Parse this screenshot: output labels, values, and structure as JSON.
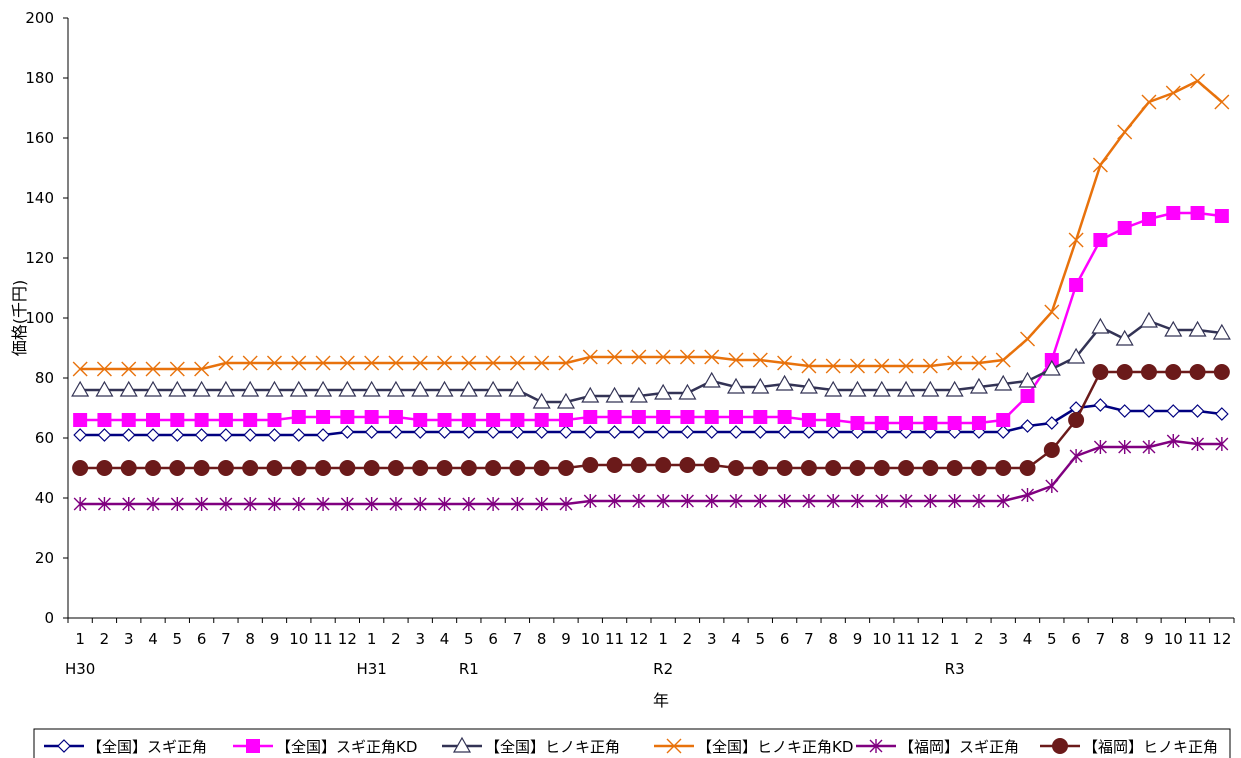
{
  "chart_data": {
    "type": "line",
    "title": "",
    "xlabel": "年",
    "ylabel": "価格(千円)",
    "ylim": [
      0,
      200
    ],
    "yticks": [
      0,
      20,
      40,
      60,
      80,
      100,
      120,
      140,
      160,
      180,
      200
    ],
    "grid": false,
    "legend_position": "bottom",
    "categories": [
      "1",
      "2",
      "3",
      "4",
      "5",
      "6",
      "7",
      "8",
      "9",
      "10",
      "11",
      "12",
      "1",
      "2",
      "3",
      "4",
      "5",
      "6",
      "7",
      "8",
      "9",
      "10",
      "11",
      "12",
      "1",
      "2",
      "3",
      "4",
      "5",
      "6",
      "7",
      "8",
      "9",
      "10",
      "11",
      "12",
      "1",
      "2",
      "3",
      "4",
      "5",
      "6",
      "7",
      "8",
      "9",
      "10",
      "11",
      "12"
    ],
    "year_labels": [
      {
        "index": 0,
        "label": "H30"
      },
      {
        "index": 12,
        "label": "H31"
      },
      {
        "index": 16,
        "label": "R1"
      },
      {
        "index": 24,
        "label": "R2"
      },
      {
        "index": 36,
        "label": "R3"
      }
    ],
    "series": [
      {
        "name": "【全国】スギ正角",
        "color": "#000080",
        "marker": "diamond-open",
        "values": [
          61,
          61,
          61,
          61,
          61,
          61,
          61,
          61,
          61,
          61,
          61,
          62,
          62,
          62,
          62,
          62,
          62,
          62,
          62,
          62,
          62,
          62,
          62,
          62,
          62,
          62,
          62,
          62,
          62,
          62,
          62,
          62,
          62,
          62,
          62,
          62,
          62,
          62,
          62,
          64,
          65,
          70,
          71,
          69,
          69,
          69,
          69,
          68
        ]
      },
      {
        "name": "【全国】スギ正角KD",
        "color": "#ff00ff",
        "marker": "square-filled",
        "values": [
          66,
          66,
          66,
          66,
          66,
          66,
          66,
          66,
          66,
          67,
          67,
          67,
          67,
          67,
          66,
          66,
          66,
          66,
          66,
          66,
          66,
          67,
          67,
          67,
          67,
          67,
          67,
          67,
          67,
          67,
          66,
          66,
          65,
          65,
          65,
          65,
          65,
          65,
          66,
          74,
          86,
          111,
          126,
          130,
          133,
          135,
          135,
          134
        ]
      },
      {
        "name": "【全国】ヒノキ正角",
        "color": "#333355",
        "marker": "triangle-open",
        "values": [
          76,
          76,
          76,
          76,
          76,
          76,
          76,
          76,
          76,
          76,
          76,
          76,
          76,
          76,
          76,
          76,
          76,
          76,
          76,
          72,
          72,
          74,
          74,
          74,
          75,
          75,
          79,
          77,
          77,
          78,
          77,
          76,
          76,
          76,
          76,
          76,
          76,
          77,
          78,
          79,
          83,
          87,
          97,
          93,
          99,
          96,
          96,
          95
        ]
      },
      {
        "name": "【全国】ヒノキ正角KD",
        "color": "#e8720c",
        "marker": "cross",
        "values": [
          83,
          83,
          83,
          83,
          83,
          83,
          85,
          85,
          85,
          85,
          85,
          85,
          85,
          85,
          85,
          85,
          85,
          85,
          85,
          85,
          85,
          87,
          87,
          87,
          87,
          87,
          87,
          86,
          86,
          85,
          84,
          84,
          84,
          84,
          84,
          84,
          85,
          85,
          86,
          93,
          102,
          126,
          151,
          162,
          172,
          175,
          179,
          172
        ]
      },
      {
        "name": "【福岡】スギ正角",
        "color": "#800080",
        "marker": "star",
        "values": [
          38,
          38,
          38,
          38,
          38,
          38,
          38,
          38,
          38,
          38,
          38,
          38,
          38,
          38,
          38,
          38,
          38,
          38,
          38,
          38,
          38,
          39,
          39,
          39,
          39,
          39,
          39,
          39,
          39,
          39,
          39,
          39,
          39,
          39,
          39,
          39,
          39,
          39,
          39,
          41,
          44,
          54,
          57,
          57,
          57,
          59,
          58,
          58
        ]
      },
      {
        "name": "【福岡】ヒノキ正角",
        "color": "#6b1a1a",
        "marker": "circle-filled",
        "values": [
          50,
          50,
          50,
          50,
          50,
          50,
          50,
          50,
          50,
          50,
          50,
          50,
          50,
          50,
          50,
          50,
          50,
          50,
          50,
          50,
          50,
          51,
          51,
          51,
          51,
          51,
          51,
          50,
          50,
          50,
          50,
          50,
          50,
          50,
          50,
          50,
          50,
          50,
          50,
          50,
          56,
          66,
          82,
          82,
          82,
          82,
          82,
          82
        ]
      }
    ]
  }
}
